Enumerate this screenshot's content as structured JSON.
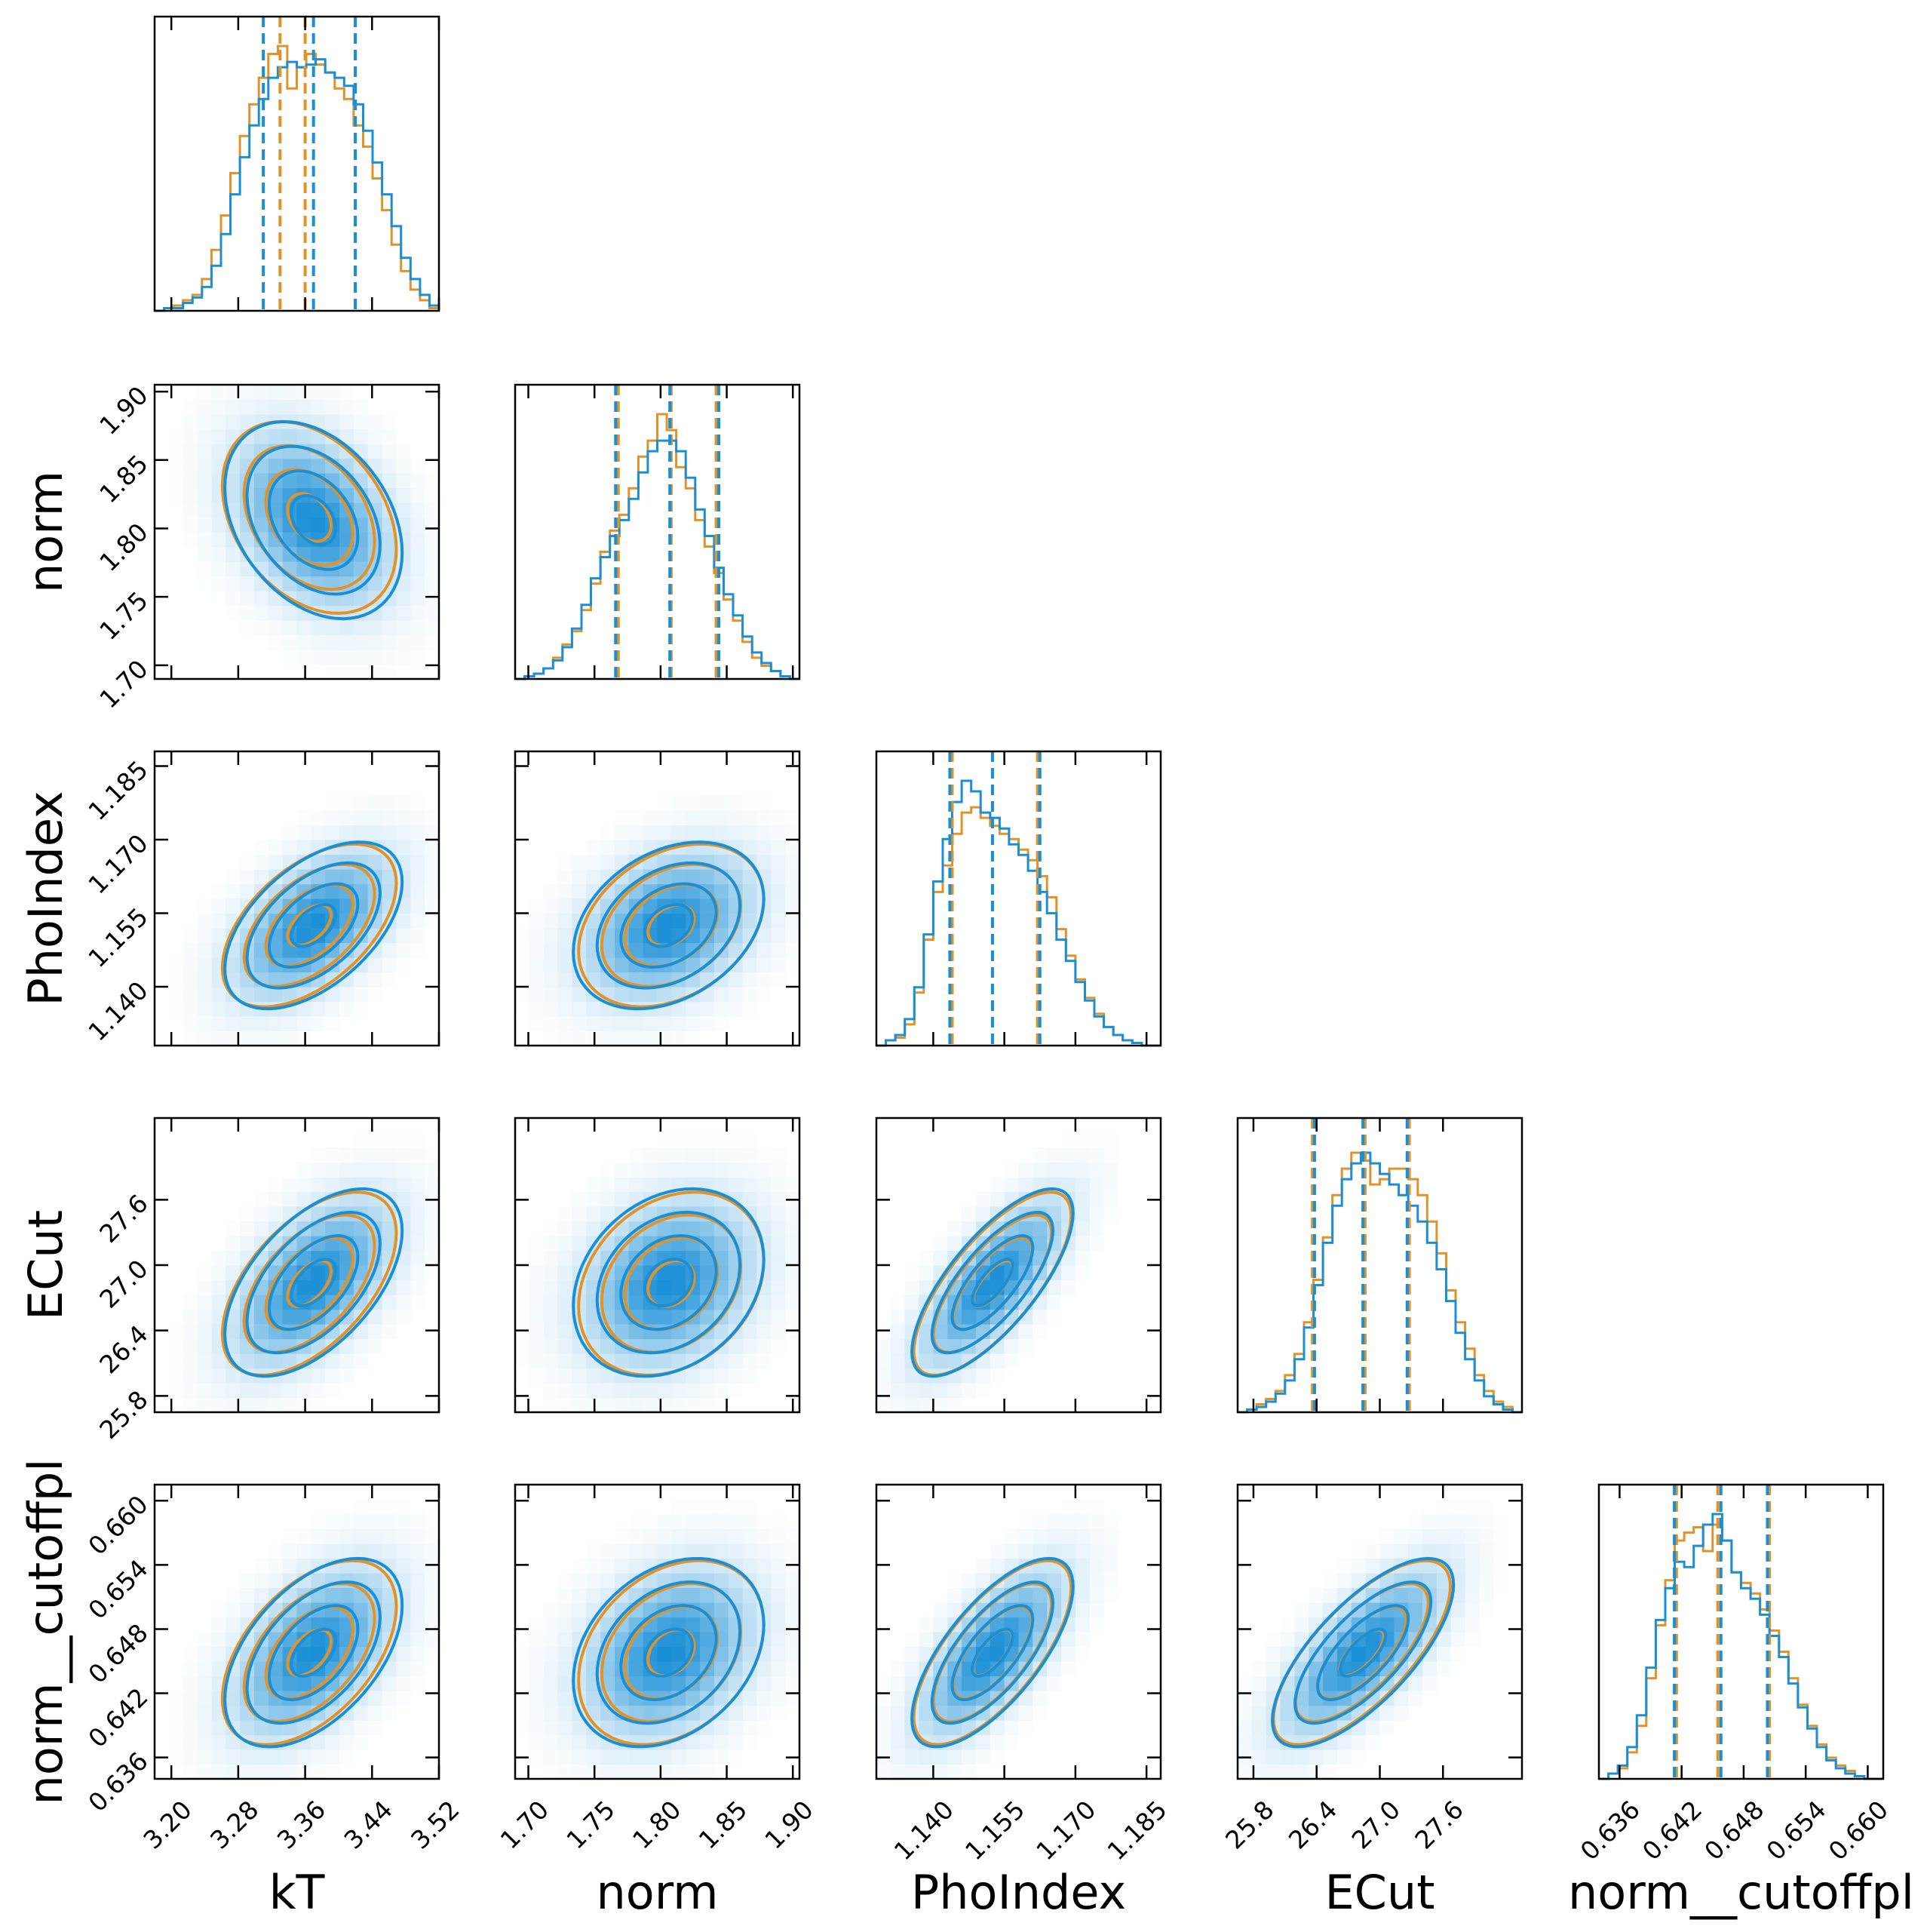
{
  "colors": {
    "orange": "#e0932a",
    "blue": "#1a8fd6",
    "frame": "#000000"
  },
  "chart_data": {
    "type": "corner",
    "parameters": [
      {
        "name": "kT",
        "label": "kT",
        "range": [
          3.18,
          3.52
        ],
        "ticks": [
          3.2,
          3.28,
          3.36,
          3.44,
          3.52
        ],
        "tick_labels": [
          "3.20",
          "3.28",
          "3.36",
          "3.44",
          "3.52"
        ]
      },
      {
        "name": "norm",
        "label": "norm",
        "range": [
          1.69,
          1.905
        ],
        "ticks": [
          1.7,
          1.75,
          1.8,
          1.85,
          1.9
        ],
        "tick_labels": [
          "1.70",
          "1.75",
          "1.80",
          "1.85",
          "1.90"
        ]
      },
      {
        "name": "PhoIndex",
        "label": "PhoIndex",
        "range": [
          1.128,
          1.188
        ],
        "ticks": [
          1.14,
          1.155,
          1.17,
          1.185
        ],
        "tick_labels": [
          "1.140",
          "1.155",
          "1.170",
          "1.185"
        ]
      },
      {
        "name": "ECut",
        "label": "ECut",
        "range": [
          25.65,
          28.35
        ],
        "ticks": [
          25.8,
          26.4,
          27.0,
          27.6
        ],
        "tick_labels": [
          "25.8",
          "26.4",
          "27.0",
          "27.6"
        ]
      },
      {
        "name": "norm__cutoffpl",
        "label": "norm__cutoffpl",
        "range": [
          0.634,
          0.6615
        ],
        "ticks": [
          0.636,
          0.642,
          0.648,
          0.654,
          0.66
        ],
        "tick_labels": [
          "0.636",
          "0.642",
          "0.648",
          "0.654",
          "0.660"
        ]
      }
    ],
    "series": [
      {
        "name": "orange",
        "color": "#e0932a",
        "quantiles": [
          [
            3.33,
            3.36,
            3.42
          ],
          [
            1.768,
            1.808,
            1.842
          ],
          [
            1.144,
            1.1525,
            1.162
          ],
          [
            26.36,
            26.86,
            27.28
          ],
          [
            0.6415,
            0.6455,
            0.6505
          ]
        ],
        "means": [
          3.365,
          1.808,
          1.1525,
          26.83,
          0.6458
        ],
        "sds": [
          0.052,
          0.035,
          0.0083,
          0.42,
          0.0043
        ],
        "hist": [
          [
            0,
            0.01,
            0.02,
            0.04,
            0.06,
            0.12,
            0.23,
            0.36,
            0.52,
            0.66,
            0.78,
            0.88,
            0.97,
            1.0,
            0.84,
            0.92,
            0.97,
            0.93,
            0.9,
            0.84,
            0.8,
            0.7,
            0.62,
            0.5,
            0.38,
            0.25,
            0.15,
            0.08,
            0.04,
            0.01
          ],
          [
            0,
            0.01,
            0.02,
            0.04,
            0.08,
            0.13,
            0.18,
            0.26,
            0.36,
            0.48,
            0.56,
            0.62,
            0.72,
            0.84,
            0.9,
            1.0,
            0.94,
            0.8,
            0.72,
            0.6,
            0.5,
            0.4,
            0.3,
            0.22,
            0.14,
            0.08,
            0.05,
            0.03,
            0.01,
            0
          ],
          [
            0,
            0.02,
            0.03,
            0.08,
            0.2,
            0.4,
            0.58,
            0.68,
            0.8,
            0.88,
            0.9,
            0.86,
            0.83,
            0.8,
            0.78,
            0.74,
            0.7,
            0.64,
            0.56,
            0.44,
            0.34,
            0.25,
            0.18,
            0.12,
            0.07,
            0.04,
            0.02,
            0.01,
            0,
            0
          ],
          [
            0,
            0.01,
            0.03,
            0.05,
            0.08,
            0.14,
            0.22,
            0.34,
            0.5,
            0.66,
            0.82,
            0.92,
            0.98,
            0.95,
            0.86,
            0.88,
            0.92,
            0.92,
            0.88,
            0.82,
            0.72,
            0.6,
            0.46,
            0.34,
            0.24,
            0.14,
            0.08,
            0.04,
            0.02,
            0
          ],
          [
            0,
            0.02,
            0.04,
            0.1,
            0.2,
            0.38,
            0.58,
            0.75,
            0.9,
            0.93,
            0.95,
            0.86,
            0.96,
            0.9,
            0.78,
            0.74,
            0.7,
            0.64,
            0.56,
            0.48,
            0.38,
            0.28,
            0.2,
            0.13,
            0.08,
            0.05,
            0.03,
            0.01,
            0,
            0
          ]
        ]
      },
      {
        "name": "blue",
        "color": "#1a8fd6",
        "quantiles": [
          [
            3.31,
            3.37,
            3.42
          ],
          [
            1.766,
            1.807,
            1.844
          ],
          [
            1.1435,
            1.1525,
            1.1625
          ],
          [
            26.38,
            26.84,
            27.26
          ],
          [
            0.6413,
            0.6458,
            0.6503
          ]
        ],
        "means": [
          3.37,
          1.806,
          1.1525,
          26.84,
          0.6458
        ],
        "sds": [
          0.053,
          0.036,
          0.0085,
          0.43,
          0.0044
        ],
        "hist": [
          [
            0,
            0.01,
            0.01,
            0.03,
            0.05,
            0.09,
            0.17,
            0.29,
            0.44,
            0.58,
            0.7,
            0.8,
            0.88,
            0.92,
            0.94,
            0.92,
            0.93,
            0.95,
            0.9,
            0.88,
            0.85,
            0.78,
            0.68,
            0.56,
            0.44,
            0.32,
            0.2,
            0.12,
            0.06,
            0.02
          ],
          [
            0,
            0.01,
            0.02,
            0.04,
            0.07,
            0.12,
            0.19,
            0.28,
            0.38,
            0.46,
            0.54,
            0.6,
            0.68,
            0.78,
            0.86,
            0.9,
            0.9,
            0.86,
            0.76,
            0.64,
            0.54,
            0.42,
            0.32,
            0.24,
            0.16,
            0.1,
            0.06,
            0.03,
            0.01,
            0
          ],
          [
            0,
            0.02,
            0.04,
            0.1,
            0.22,
            0.42,
            0.62,
            0.78,
            0.92,
            1.0,
            0.96,
            0.88,
            0.86,
            0.82,
            0.76,
            0.72,
            0.66,
            0.58,
            0.5,
            0.4,
            0.32,
            0.24,
            0.17,
            0.11,
            0.07,
            0.04,
            0.02,
            0.01,
            0,
            0
          ],
          [
            0,
            0.01,
            0.02,
            0.04,
            0.07,
            0.12,
            0.2,
            0.32,
            0.48,
            0.64,
            0.78,
            0.88,
            0.94,
            0.98,
            0.94,
            0.9,
            0.86,
            0.82,
            0.78,
            0.72,
            0.64,
            0.54,
            0.42,
            0.3,
            0.2,
            0.12,
            0.06,
            0.03,
            0.01,
            0
          ],
          [
            0,
            0.02,
            0.05,
            0.12,
            0.24,
            0.42,
            0.6,
            0.72,
            0.82,
            0.8,
            0.88,
            0.96,
            1.0,
            0.9,
            0.78,
            0.72,
            0.68,
            0.62,
            0.54,
            0.46,
            0.36,
            0.27,
            0.19,
            0.12,
            0.07,
            0.04,
            0.02,
            0.01,
            0,
            0
          ]
        ]
      }
    ],
    "correlations": [
      [
        1.0,
        -0.33,
        0.52,
        0.55,
        0.5
      ],
      [
        -0.33,
        1.0,
        0.32,
        0.25,
        0.3
      ],
      [
        0.52,
        0.32,
        1.0,
        0.74,
        0.7
      ],
      [
        0.55,
        0.25,
        0.74,
        1.0,
        0.72
      ],
      [
        0.5,
        0.3,
        0.7,
        0.72,
        1.0
      ]
    ],
    "contour_levels_sigma": [
      0.5,
      1.0,
      1.5,
      2.0
    ],
    "density_colormap": "Blues (light to #1a8fd6)"
  }
}
